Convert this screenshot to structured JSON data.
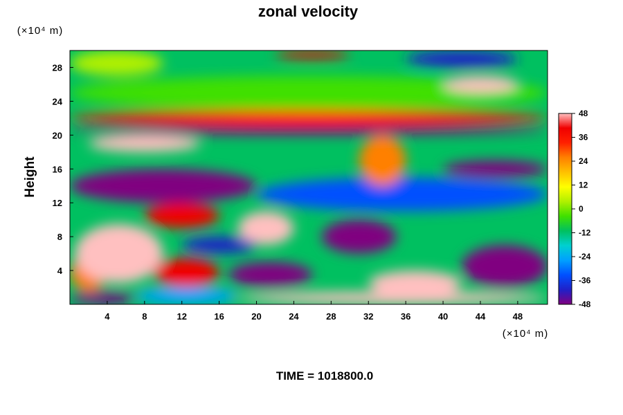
{
  "chart_data": {
    "type": "heatmap",
    "title": "zonal velocity",
    "xlabel": "",
    "ylabel": "Height",
    "x_unit": "(×10⁴ m)",
    "y_unit": "(×10⁴ m)",
    "xlim": [
      0,
      51.2
    ],
    "ylim": [
      0,
      30
    ],
    "x_ticks": [
      "4",
      "8",
      "12",
      "16",
      "20",
      "24",
      "28",
      "32",
      "36",
      "40",
      "44",
      "48"
    ],
    "y_ticks": [
      "4",
      "8",
      "12",
      "16",
      "20",
      "24",
      "28"
    ],
    "colorbar": {
      "range": [
        -48,
        48
      ],
      "ticks": [
        "48",
        "36",
        "24",
        "12",
        "0",
        "-12",
        "-24",
        "-36",
        "-48"
      ],
      "colors": [
        "#800080",
        "#2020c8",
        "#0050ff",
        "#00a0ff",
        "#00d0d0",
        "#00c060",
        "#40e000",
        "#b0f000",
        "#ffff00",
        "#ffc000",
        "#ff8000",
        "#ff2000",
        "#f00000",
        "#ffc0c0"
      ]
    },
    "annotation": "TIME = 1018800.0",
    "regions": [
      {
        "x": [
          0,
          7
        ],
        "y": [
          0,
          1.5
        ],
        "value": -48
      },
      {
        "x": [
          7,
          18
        ],
        "y": [
          0,
          2
        ],
        "value": -24
      },
      {
        "x": [
          18,
          51.2
        ],
        "y": [
          0,
          1.5
        ],
        "value": 48
      },
      {
        "x": [
          0,
          4
        ],
        "y": [
          1.5,
          6
        ],
        "value": 24
      },
      {
        "x": [
          0.5,
          10
        ],
        "y": [
          2.5,
          9.5
        ],
        "value": 48
      },
      {
        "x": [
          9,
          16
        ],
        "y": [
          2,
          5.5
        ],
        "value": 42
      },
      {
        "x": [
          17,
          26
        ],
        "y": [
          2,
          5
        ],
        "value": -48
      },
      {
        "x": [
          27,
          35
        ],
        "y": [
          6,
          10
        ],
        "value": -48
      },
      {
        "x": [
          32,
          42
        ],
        "y": [
          1,
          4
        ],
        "value": 48
      },
      {
        "x": [
          42,
          51.2
        ],
        "y": [
          2,
          7
        ],
        "value": -48
      },
      {
        "x": [
          8,
          16
        ],
        "y": [
          9,
          12
        ],
        "value": 42
      },
      {
        "x": [
          18,
          24
        ],
        "y": [
          7,
          11
        ],
        "value": 48
      },
      {
        "x": [
          12,
          20
        ],
        "y": [
          6,
          8
        ],
        "value": -42
      },
      {
        "x": [
          0,
          20
        ],
        "y": [
          12,
          16
        ],
        "value": -48
      },
      {
        "x": [
          20,
          51.2
        ],
        "y": [
          11,
          15
        ],
        "value": -36
      },
      {
        "x": [
          40,
          51.2
        ],
        "y": [
          15,
          17
        ],
        "value": -48
      },
      {
        "x": [
          2,
          14
        ],
        "y": [
          18,
          20
        ],
        "value": 48
      },
      {
        "x": [
          31,
          36
        ],
        "y": [
          14,
          20
        ],
        "value": 24
      },
      {
        "x": [
          0,
          51.2
        ],
        "y": [
          20,
          21
        ],
        "value": -48
      },
      {
        "x": [
          0,
          51.2
        ],
        "y": [
          21,
          23
        ],
        "value": 30
      },
      {
        "x": [
          0,
          51.2
        ],
        "y": [
          23,
          27
        ],
        "value": -6
      },
      {
        "x": [
          40,
          48
        ],
        "y": [
          25,
          27
        ],
        "value": 48
      },
      {
        "x": [
          22,
          30
        ],
        "y": [
          29,
          30
        ],
        "value": 42
      },
      {
        "x": [
          36,
          48
        ],
        "y": [
          28,
          30
        ],
        "value": -40
      },
      {
        "x": [
          0,
          10
        ],
        "y": [
          27,
          30
        ],
        "value": 6
      }
    ]
  }
}
